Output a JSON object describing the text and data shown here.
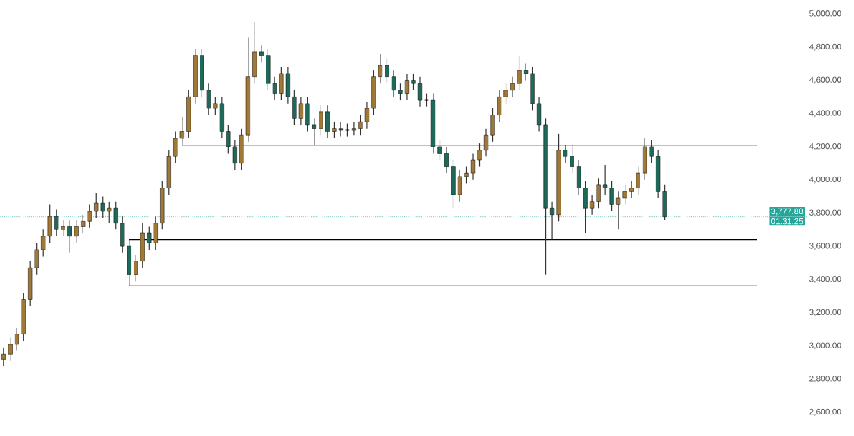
{
  "chart_data": {
    "type": "candlestick",
    "categories": [
      null,
      null,
      null,
      null,
      null,
      null,
      null,
      null,
      null,
      null,
      null,
      null,
      null,
      null,
      null,
      null,
      null,
      null,
      null,
      null,
      null,
      null,
      null,
      null,
      null,
      null,
      null,
      null,
      null,
      null,
      null,
      null,
      null,
      null,
      null,
      null,
      null,
      null,
      null,
      null,
      null,
      null,
      null,
      null,
      null,
      null,
      null,
      null,
      null,
      null,
      null,
      null,
      null,
      null,
      null,
      null,
      null,
      null,
      null,
      null,
      null,
      null,
      null,
      null,
      null,
      null,
      null,
      null,
      null,
      null,
      null,
      null,
      null,
      null,
      null,
      null,
      null,
      null,
      null,
      null,
      null,
      null,
      null,
      null,
      null,
      null,
      null,
      null,
      null,
      null,
      null,
      null,
      null,
      null,
      null,
      null,
      null,
      null,
      null,
      null,
      null,
      null,
      null,
      null,
      null,
      null,
      null,
      null,
      null,
      null,
      null,
      null,
      null,
      null,
      null,
      null,
      null,
      null,
      null,
      null,
      null,
      null
    ],
    "ohlc": [
      [
        2920,
        2990,
        2880,
        2950
      ],
      [
        2950,
        3050,
        2910,
        3010
      ],
      [
        3010,
        3110,
        2970,
        3070
      ],
      [
        3070,
        3320,
        3030,
        3280
      ],
      [
        3280,
        3510,
        3240,
        3470
      ],
      [
        3470,
        3620,
        3430,
        3580
      ],
      [
        3580,
        3700,
        3540,
        3660
      ],
      [
        3660,
        3850,
        3620,
        3780
      ],
      [
        3780,
        3820,
        3660,
        3700
      ],
      [
        3700,
        3760,
        3660,
        3720
      ],
      [
        3720,
        3760,
        3560,
        3660
      ],
      [
        3660,
        3760,
        3620,
        3720
      ],
      [
        3720,
        3790,
        3680,
        3750
      ],
      [
        3750,
        3850,
        3710,
        3810
      ],
      [
        3810,
        3920,
        3770,
        3860
      ],
      [
        3860,
        3900,
        3770,
        3810
      ],
      [
        3810,
        3870,
        3740,
        3830
      ],
      [
        3830,
        3870,
        3700,
        3740
      ],
      [
        3740,
        3780,
        3560,
        3600
      ],
      [
        3600,
        3640,
        3360,
        3430
      ],
      [
        3430,
        3550,
        3390,
        3510
      ],
      [
        3510,
        3740,
        3470,
        3680
      ],
      [
        3680,
        3720,
        3580,
        3620
      ],
      [
        3620,
        3780,
        3580,
        3740
      ],
      [
        3740,
        3990,
        3700,
        3950
      ],
      [
        3950,
        4180,
        3910,
        4140
      ],
      [
        4140,
        4290,
        4100,
        4250
      ],
      [
        4250,
        4380,
        4210,
        4290
      ],
      [
        4290,
        4540,
        4250,
        4500
      ],
      [
        4500,
        4790,
        4460,
        4750
      ],
      [
        4750,
        4790,
        4500,
        4540
      ],
      [
        4540,
        4580,
        4390,
        4430
      ],
      [
        4430,
        4500,
        4390,
        4460
      ],
      [
        4460,
        4500,
        4250,
        4290
      ],
      [
        4290,
        4330,
        4160,
        4200
      ],
      [
        4200,
        4240,
        4060,
        4100
      ],
      [
        4100,
        4310,
        4060,
        4270
      ],
      [
        4270,
        4860,
        4230,
        4620
      ],
      [
        4620,
        4950,
        4580,
        4770
      ],
      [
        4770,
        4810,
        4710,
        4750
      ],
      [
        4750,
        4790,
        4540,
        4580
      ],
      [
        4580,
        4620,
        4480,
        4520
      ],
      [
        4520,
        4680,
        4480,
        4640
      ],
      [
        4640,
        4680,
        4460,
        4500
      ],
      [
        4500,
        4540,
        4330,
        4370
      ],
      [
        4370,
        4500,
        4330,
        4460
      ],
      [
        4460,
        4500,
        4290,
        4330
      ],
      [
        4330,
        4370,
        4210,
        4310
      ],
      [
        4310,
        4450,
        4270,
        4410
      ],
      [
        4410,
        4450,
        4250,
        4290
      ],
      [
        4290,
        4350,
        4250,
        4310
      ],
      [
        4310,
        4350,
        4260,
        4300
      ],
      [
        4300,
        4340,
        4260,
        4300
      ],
      [
        4300,
        4350,
        4270,
        4310
      ],
      [
        4310,
        4390,
        4270,
        4350
      ],
      [
        4350,
        4470,
        4310,
        4430
      ],
      [
        4430,
        4660,
        4390,
        4620
      ],
      [
        4620,
        4760,
        4580,
        4690
      ],
      [
        4690,
        4730,
        4580,
        4620
      ],
      [
        4620,
        4660,
        4500,
        4540
      ],
      [
        4540,
        4580,
        4480,
        4520
      ],
      [
        4520,
        4640,
        4480,
        4600
      ],
      [
        4600,
        4640,
        4540,
        4580
      ],
      [
        4580,
        4620,
        4440,
        4480
      ],
      [
        4480,
        4520,
        4440,
        4480
      ],
      [
        4480,
        4520,
        4160,
        4200
      ],
      [
        4200,
        4240,
        4120,
        4160
      ],
      [
        4160,
        4200,
        4040,
        4080
      ],
      [
        4080,
        4120,
        3830,
        3910
      ],
      [
        3910,
        4060,
        3870,
        4020
      ],
      [
        4020,
        4080,
        3980,
        4040
      ],
      [
        4040,
        4160,
        4000,
        4120
      ],
      [
        4120,
        4220,
        4080,
        4180
      ],
      [
        4180,
        4310,
        4140,
        4270
      ],
      [
        4270,
        4430,
        4230,
        4390
      ],
      [
        4390,
        4540,
        4350,
        4500
      ],
      [
        4500,
        4580,
        4460,
        4540
      ],
      [
        4540,
        4620,
        4500,
        4580
      ],
      [
        4580,
        4750,
        4540,
        4660
      ],
      [
        4660,
        4700,
        4600,
        4640
      ],
      [
        4640,
        4680,
        4420,
        4460
      ],
      [
        4460,
        4500,
        4290,
        4330
      ],
      [
        4330,
        4370,
        3430,
        3830
      ],
      [
        3830,
        3870,
        3640,
        3790
      ],
      [
        3790,
        4280,
        3750,
        4180
      ],
      [
        4180,
        4210,
        4100,
        4140
      ],
      [
        4140,
        4210,
        4040,
        4080
      ],
      [
        4080,
        4120,
        3910,
        3950
      ],
      [
        3950,
        3990,
        3680,
        3830
      ],
      [
        3830,
        3910,
        3790,
        3870
      ],
      [
        3870,
        4010,
        3830,
        3970
      ],
      [
        3970,
        4090,
        3910,
        3950
      ],
      [
        3950,
        3990,
        3810,
        3850
      ],
      [
        3850,
        3930,
        3700,
        3890
      ],
      [
        3890,
        3970,
        3850,
        3930
      ],
      [
        3930,
        3990,
        3890,
        3950
      ],
      [
        3950,
        4080,
        3910,
        4040
      ],
      [
        4040,
        4250,
        4000,
        4200
      ],
      [
        4200,
        4240,
        4100,
        4140
      ],
      [
        4140,
        4180,
        3890,
        3930
      ],
      [
        3930,
        3970,
        3760,
        3777.88
      ],
      null,
      null,
      null,
      null,
      null,
      null,
      null,
      null,
      null,
      null,
      null,
      null,
      null,
      null,
      null,
      null,
      null,
      null,
      null,
      null,
      null
    ],
    "ylim": [
      2600,
      5000
    ],
    "yticks": [
      {
        "value": 2600,
        "label": "2,600.00"
      },
      {
        "value": 2800,
        "label": "2,800.00"
      },
      {
        "value": 3000,
        "label": "3,000.00"
      },
      {
        "value": 3200,
        "label": "3,200.00"
      },
      {
        "value": 3400,
        "label": "3,400.00"
      },
      {
        "value": 3600,
        "label": "3,600.00"
      },
      {
        "value": 3800,
        "label": "3,800.00"
      },
      {
        "value": 4000,
        "label": "4,000.00"
      },
      {
        "value": 4200,
        "label": "4,200.00"
      },
      {
        "value": 4400,
        "label": "4,400.00"
      },
      {
        "value": 4600,
        "label": "4,600.00"
      },
      {
        "value": 4800,
        "label": "4,800.00"
      },
      {
        "value": 5000,
        "label": "5,000.00"
      }
    ],
    "ref_lines": [
      {
        "axis": "y",
        "value": 3360,
        "color": "#000000"
      },
      {
        "axis": "y",
        "value": 3640,
        "color": "#000000"
      },
      {
        "axis": "y",
        "value": 4210,
        "color": "#000000"
      },
      {
        "axis": "y",
        "value": 3777.88,
        "label": "3,777.88",
        "color": "#26a69a",
        "line_style": "dotted"
      }
    ],
    "annotations": [
      "01:31:25"
    ],
    "tick_labels": "y",
    "grid": false
  }
}
